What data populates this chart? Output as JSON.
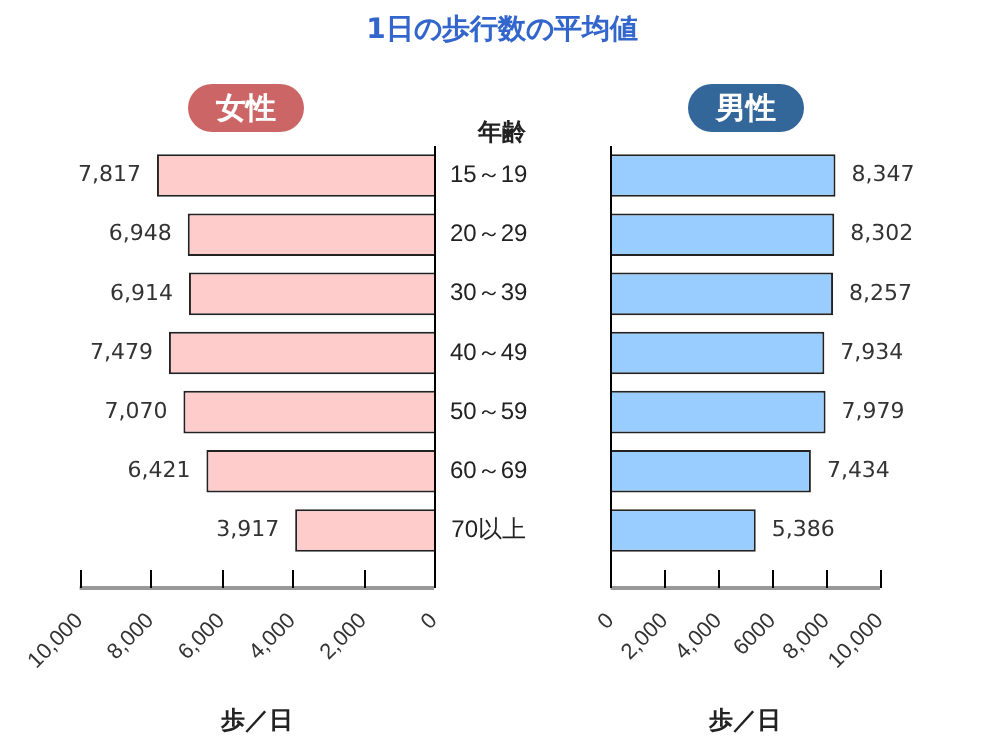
{
  "chart_data": [
    {
      "type": "bar",
      "title": "1日の歩行数の平均値",
      "subtitle": "女性",
      "orientation": "horizontal",
      "ylabel": "年齢",
      "xlabel": "歩／日",
      "categories": [
        "15～19",
        "20～29",
        "30～39",
        "40～49",
        "50～59",
        "60～69",
        "70以上"
      ],
      "values": [
        7817,
        6948,
        6914,
        7479,
        7070,
        6421,
        3917
      ],
      "value_labels": [
        "7,817",
        "6,948",
        "6,914",
        "7,479",
        "7,070",
        "6,421",
        "3,917"
      ],
      "color": "#ffcccc",
      "xlim": [
        10000,
        0
      ],
      "xticks": [
        {
          "value": 10000,
          "label": "10,000"
        },
        {
          "value": 8000,
          "label": "8,000"
        },
        {
          "value": 6000,
          "label": "6,000"
        },
        {
          "value": 4000,
          "label": "4,000"
        },
        {
          "value": 2000,
          "label": "2,000"
        },
        {
          "value": 0,
          "label": "0"
        }
      ],
      "grid": false
    },
    {
      "type": "bar",
      "subtitle": "男性",
      "orientation": "horizontal",
      "xlabel": "歩／日",
      "categories": [
        null,
        null,
        null,
        null,
        null,
        null,
        null
      ],
      "values": [
        8347,
        8302,
        8257,
        7934,
        7979,
        7434,
        5386
      ],
      "value_labels": [
        "8,347",
        "8,302",
        "8,257",
        "7,934",
        "7,979",
        "7,434",
        "5,386"
      ],
      "color": "#99ccff",
      "xlim": [
        0,
        10000
      ],
      "xticks": [
        {
          "value": 0,
          "label": "0"
        },
        {
          "value": 2000,
          "label": "2,000"
        },
        {
          "value": 4000,
          "label": "4,000"
        },
        {
          "value": 6000,
          "label": "6000"
        },
        {
          "value": 8000,
          "label": "8,000"
        },
        {
          "value": 10000,
          "label": "10,000"
        }
      ],
      "tick_labels": "x",
      "grid": false
    }
  ]
}
